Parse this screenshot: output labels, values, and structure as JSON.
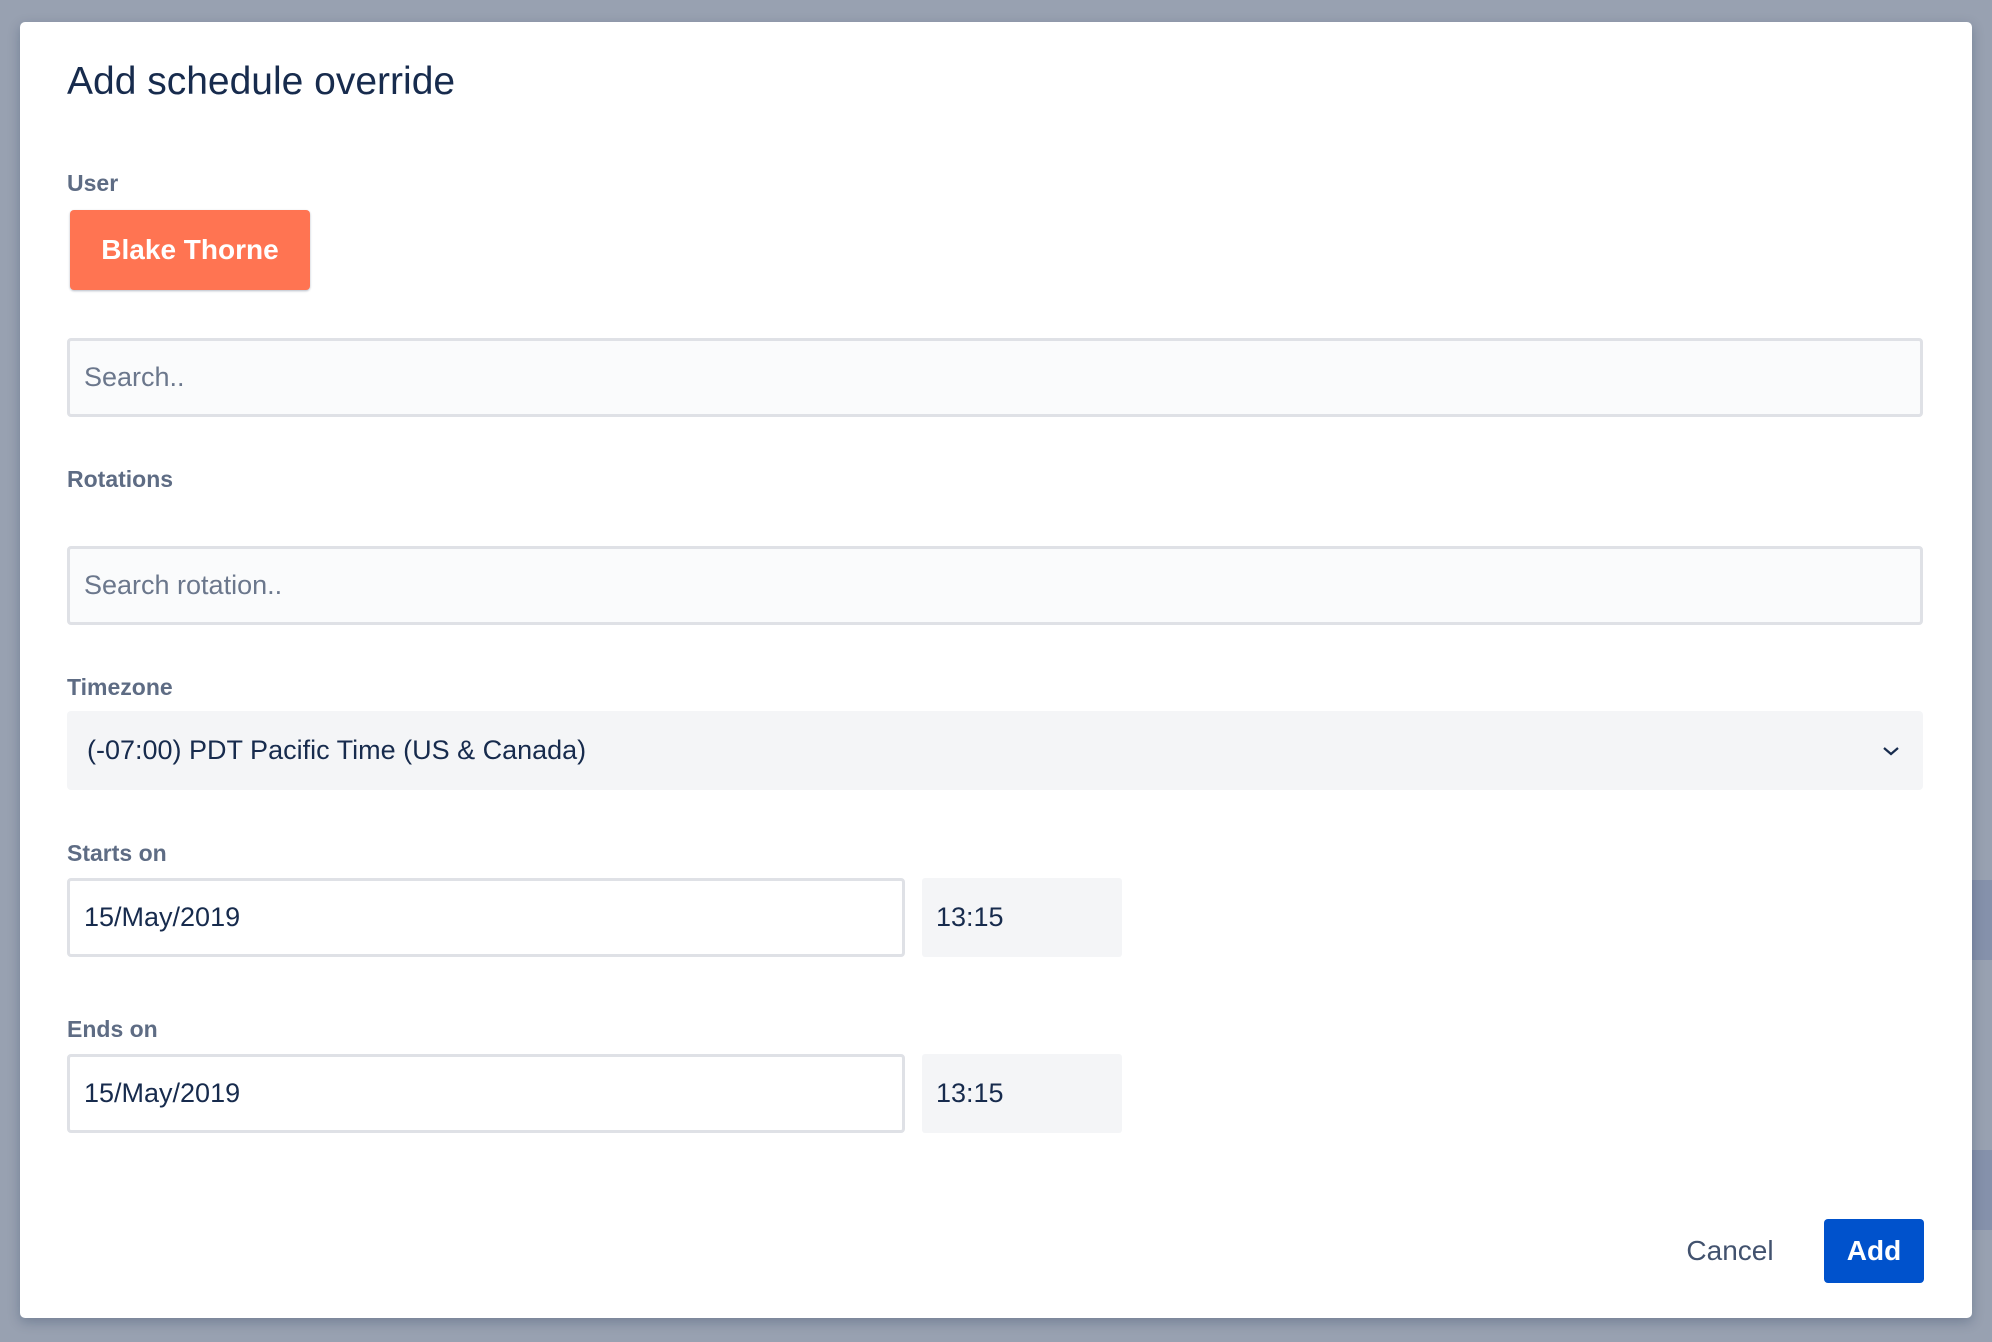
{
  "dialog": {
    "title": "Add schedule override",
    "user_label": "User",
    "selected_user": "Blake Thorne",
    "user_search_placeholder": "Search..",
    "rotations_label": "Rotations",
    "rotation_search_placeholder": "Search rotation..",
    "timezone_label": "Timezone",
    "timezone_value": "(-07:00) PDT Pacific Time (US & Canada)",
    "starts_label": "Starts on",
    "starts_date": "15/May/2019",
    "starts_time": "13:15",
    "ends_label": "Ends on",
    "ends_date": "15/May/2019",
    "ends_time": "13:15",
    "cancel_label": "Cancel",
    "add_label": "Add"
  },
  "colors": {
    "user_chip": "#ff7452",
    "primary": "#0052cc",
    "overlay": "#98a1b1"
  }
}
